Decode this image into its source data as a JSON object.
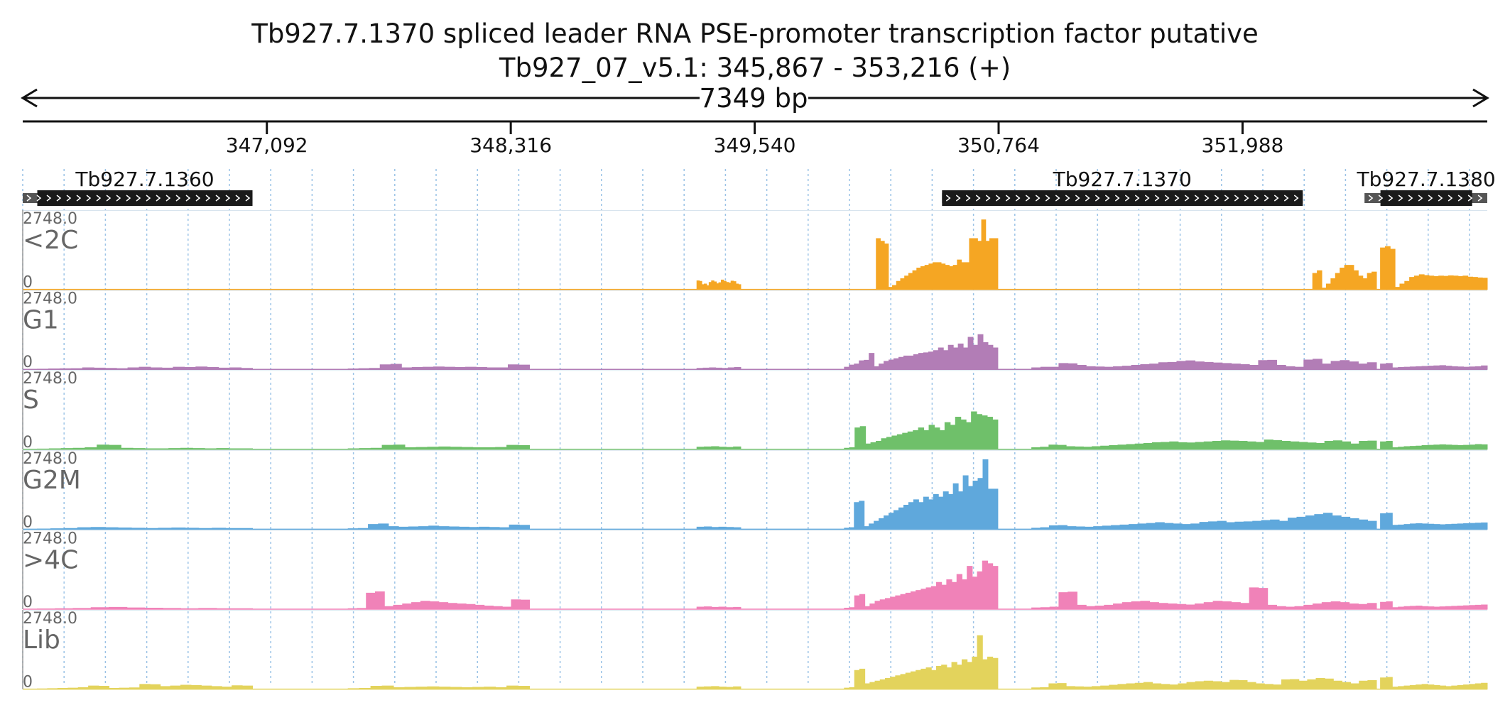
{
  "header": {
    "title": "Tb927.7.1370  spliced leader RNA PSE-promoter transcription factor  putative",
    "subtitle": "Tb927_07_v5.1: 345,867 - 353,216 (+)",
    "span_label": "7349 bp"
  },
  "chart_data": {
    "type": "area",
    "region": {
      "chrom": "Tb927_07_v5.1",
      "start": 345867,
      "end": 353216,
      "strand": "+"
    },
    "xlim": [
      345867,
      353216
    ],
    "ticks": [
      347092,
      348316,
      349540,
      350764,
      351988
    ],
    "tick_labels": [
      "347,092",
      "348,316",
      "349,540",
      "350,764",
      "351,988"
    ],
    "grid": true,
    "genes": [
      {
        "name": "Tb927.7.1360",
        "utr_start": 345867,
        "start": 345940,
        "end": 347020,
        "utr_end": 347020,
        "strand": "+"
      },
      {
        "name": "Tb927.7.1370",
        "utr_start": 350480,
        "start": 350480,
        "end": 352290,
        "utr_end": 352290,
        "strand": "+"
      },
      {
        "name": "Tb927.7.1380",
        "utr_start": 352600,
        "start": 352680,
        "end": 353140,
        "utr_end": 353216,
        "strand": "+"
      }
    ],
    "ylim": [
      0,
      2748.0
    ],
    "ymax_label": "2748.0",
    "ymin_label": "0",
    "series": [
      {
        "name": "<2C",
        "color": "#f5a623",
        "segments": [
          {
            "from": 349250,
            "to": 349470,
            "values": [
              320,
              300,
              180,
              200,
              140,
              260,
              320,
              280,
              210,
              250,
              350,
              300,
              260,
              240,
              310,
              290,
              200,
              180
            ]
          },
          {
            "from": 350150,
            "to": 350760,
            "values": [
              1900,
              1800,
              1700,
              80,
              150,
              300,
              400,
              500,
              600,
              700,
              800,
              850,
              900,
              950,
              1000,
              1000,
              950,
              900,
              850,
              900,
              1100,
              1000,
              1000,
              1900,
              1900,
              1800,
              2600,
              1800,
              1900,
              1900
            ]
          },
          {
            "from": 352340,
            "to": 352660,
            "values": [
              600,
              700,
              50,
              200,
              400,
              600,
              800,
              900,
              900,
              700,
              500,
              400,
              600,
              650
            ]
          },
          {
            "from": 352680,
            "to": 353216,
            "values": [
              1550,
              1600,
              1500,
              80,
              200,
              300,
              450,
              500,
              550,
              520,
              500,
              480,
              500,
              490,
              510,
              500,
              480,
              500,
              460,
              450,
              430,
              420
            ]
          }
        ]
      },
      {
        "name": "G1",
        "color": "#b27db6",
        "segments": [
          {
            "from": 345940,
            "to": 347020,
            "values": [
              10,
              20,
              25,
              30,
              60,
              50,
              40,
              30,
              60,
              80,
              60,
              50,
              80,
              70,
              90,
              70,
              50,
              60,
              40
            ]
          },
          {
            "from": 347500,
            "to": 348410,
            "values": [
              20,
              30,
              40,
              170,
              190,
              60,
              70,
              80,
              90,
              80,
              70,
              80,
              70,
              60,
              60,
              170,
              160
            ]
          },
          {
            "from": 349250,
            "to": 349470,
            "values": [
              40,
              50,
              60,
              50,
              40,
              60,
              70
            ]
          },
          {
            "from": 349990,
            "to": 350760,
            "values": [
              80,
              160,
              200,
              320,
              340,
              600,
              100,
              200,
              300,
              350,
              400,
              450,
              500,
              500,
              550,
              600,
              620,
              650,
              700,
              800,
              700,
              900,
              800,
              950,
              800,
              1200,
              900,
              1300,
              1000,
              900,
              800
            ]
          },
          {
            "from": 350930,
            "to": 352660,
            "values": [
              60,
              80,
              80,
              220,
              210,
              150,
              100,
              90,
              80,
              100,
              120,
              150,
              180,
              200,
              250,
              260,
              300,
              320,
              280,
              260,
              240,
              220,
              200,
              180,
              150,
              330,
              340,
              150,
              100,
              80,
              350,
              380,
              200,
              300,
              330,
              280,
              200,
              250
            ]
          },
          {
            "from": 352680,
            "to": 353216,
            "values": [
              200,
              220,
              60,
              70,
              80,
              90,
              100,
              110,
              120,
              130,
              140,
              120,
              100,
              90,
              80,
              90,
              100,
              130
            ]
          }
        ]
      },
      {
        "name": "S",
        "color": "#6fc06a",
        "segments": [
          {
            "from": 345940,
            "to": 347020,
            "values": [
              10,
              20,
              30,
              40,
              60,
              160,
              150,
              40,
              30,
              20,
              20,
              30,
              40,
              30,
              20,
              30,
              20,
              20
            ]
          },
          {
            "from": 347500,
            "to": 348410,
            "values": [
              20,
              30,
              40,
              150,
              160,
              60,
              70,
              80,
              90,
              80,
              70,
              60,
              60,
              70,
              150,
              140
            ]
          },
          {
            "from": 349250,
            "to": 349470,
            "values": [
              80,
              90,
              100,
              80,
              70,
              90
            ]
          },
          {
            "from": 349990,
            "to": 350760,
            "values": [
              40,
              60,
              800,
              850,
              200,
              250,
              300,
              400,
              450,
              500,
              550,
              600,
              650,
              700,
              800,
              700,
              900,
              800,
              700,
              1000,
              900,
              1200,
              1100,
              1000,
              1400,
              1300,
              1250,
              1200,
              1100
            ]
          },
          {
            "from": 350930,
            "to": 352660,
            "values": [
              60,
              80,
              160,
              150,
              100,
              90,
              80,
              100,
              120,
              140,
              160,
              180,
              200,
              220,
              250,
              260,
              280,
              250,
              240,
              260,
              280,
              300,
              320,
              310,
              300,
              280,
              260,
              350,
              330,
              300,
              280,
              260,
              240,
              220,
              300,
              320,
              280,
              200,
              300,
              310
            ]
          },
          {
            "from": 352680,
            "to": 353216,
            "values": [
              280,
              300,
              60,
              80,
              100,
              110,
              120,
              140,
              150,
              160,
              170,
              160,
              150,
              140,
              150,
              160,
              180,
              170
            ]
          }
        ]
      },
      {
        "name": "G2M",
        "color": "#5fa8dc",
        "segments": [
          {
            "from": 345940,
            "to": 347020,
            "values": [
              10,
              20,
              30,
              60,
              70,
              60,
              50,
              40,
              30,
              40,
              50,
              40,
              30,
              40,
              30,
              30
            ]
          },
          {
            "from": 347500,
            "to": 348410,
            "values": [
              20,
              30,
              180,
              200,
              100,
              80,
              90,
              100,
              120,
              100,
              90,
              80,
              70,
              80,
              70,
              60,
              160,
              150
            ]
          },
          {
            "from": 349250,
            "to": 349470,
            "values": [
              80,
              90,
              70,
              80,
              70,
              60
            ]
          },
          {
            "from": 349990,
            "to": 350760,
            "values": [
              40,
              60,
              1000,
              1050,
              100,
              200,
              300,
              400,
              500,
              600,
              700,
              800,
              900,
              1000,
              1100,
              1000,
              1200,
              1100,
              1300,
              1200,
              1400,
              1300,
              1700,
              1400,
              2000,
              1600,
              1800,
              1900,
              2600,
              1500,
              1500
            ]
          },
          {
            "from": 350930,
            "to": 352660,
            "values": [
              40,
              60,
              130,
              140,
              100,
              90,
              80,
              100,
              120,
              140,
              160,
              180,
              200,
              220,
              250,
              220,
              200,
              180,
              200,
              260,
              280,
              300,
              250,
              270,
              280,
              300,
              330,
              350,
              300,
              420,
              450,
              500,
              550,
              600,
              500,
              450,
              400,
              350,
              300
            ]
          },
          {
            "from": 352680,
            "to": 353216,
            "values": [
              580,
              600,
              150,
              160,
              180,
              200,
              210,
              200,
              190,
              180,
              170,
              180,
              190,
              200,
              210,
              220,
              230,
              240
            ]
          }
        ]
      },
      {
        "name": ">4C",
        "color": "#f082b8",
        "segments": [
          {
            "from": 345940,
            "to": 347020,
            "values": [
              10,
              20,
              30,
              60,
              70,
              50,
              40,
              30,
              20,
              30,
              20,
              20
            ]
          },
          {
            "from": 347500,
            "to": 348410,
            "values": [
              20,
              30,
              600,
              650,
              100,
              150,
              200,
              250,
              300,
              280,
              250,
              220,
              200,
              180,
              150,
              120,
              100,
              80,
              350,
              340
            ]
          },
          {
            "from": 349250,
            "to": 349470,
            "values": [
              80,
              90,
              70,
              80,
              60,
              70
            ]
          },
          {
            "from": 349990,
            "to": 350760,
            "values": [
              40,
              60,
              500,
              550,
              100,
              200,
              300,
              350,
              400,
              450,
              500,
              550,
              600,
              650,
              700,
              750,
              800,
              850,
              1000,
              900,
              1100,
              1000,
              1300,
              1100,
              1600,
              1200,
              1400,
              1800,
              1700,
              1600
            ]
          },
          {
            "from": 350930,
            "to": 352660,
            "values": [
              50,
              60,
              80,
              620,
              640,
              150,
              100,
              120,
              150,
              200,
              250,
              280,
              300,
              250,
              220,
              200,
              180,
              160,
              200,
              250,
              300,
              280,
              250,
              220,
              800,
              780,
              150,
              100,
              80,
              100,
              150,
              200,
              250,
              280,
              250,
              200,
              180,
              220
            ]
          },
          {
            "from": 352680,
            "to": 353216,
            "values": [
              260,
              280,
              60,
              80,
              100,
              110,
              120,
              100,
              90,
              80,
              90,
              100,
              110,
              120,
              130,
              140,
              150,
              160
            ]
          }
        ]
      },
      {
        "name": "Lib",
        "color": "#e3d35c",
        "segments": [
          {
            "from": 345940,
            "to": 347020,
            "values": [
              10,
              20,
              30,
              40,
              60,
              120,
              110,
              30,
              40,
              50,
              180,
              170,
              100,
              120,
              150,
              140,
              120,
              100,
              80,
              130,
              120
            ]
          },
          {
            "from": 347500,
            "to": 348410,
            "values": [
              20,
              30,
              110,
              120,
              60,
              70,
              80,
              90,
              80,
              70,
              60,
              70,
              80,
              60,
              120,
              110
            ]
          },
          {
            "from": 349250,
            "to": 349470,
            "values": [
              80,
              90,
              100,
              80,
              70,
              90
            ]
          },
          {
            "from": 349990,
            "to": 350760,
            "values": [
              40,
              60,
              700,
              750,
              200,
              250,
              300,
              350,
              400,
              450,
              500,
              550,
              600,
              650,
              700,
              750,
              800,
              700,
              850,
              900,
              800,
              1000,
              900,
              1100,
              1000,
              1200,
              2000,
              1100,
              1200,
              1150
            ]
          },
          {
            "from": 350930,
            "to": 352660,
            "values": [
              50,
              60,
              200,
              210,
              100,
              90,
              80,
              100,
              120,
              150,
              180,
              200,
              220,
              250,
              200,
              180,
              160,
              200,
              250,
              280,
              300,
              280,
              250,
              330,
              320,
              250,
              200,
              180,
              160,
              350,
              360,
              300,
              350,
              400,
              380,
              300,
              250,
              200,
              300,
              320
            ]
          },
          {
            "from": 352680,
            "to": 353216,
            "values": [
              420,
              440,
              80,
              100,
              120,
              140,
              160,
              180,
              160,
              140,
              120,
              100,
              120,
              140,
              160,
              180,
              200,
              220
            ]
          }
        ]
      }
    ]
  }
}
